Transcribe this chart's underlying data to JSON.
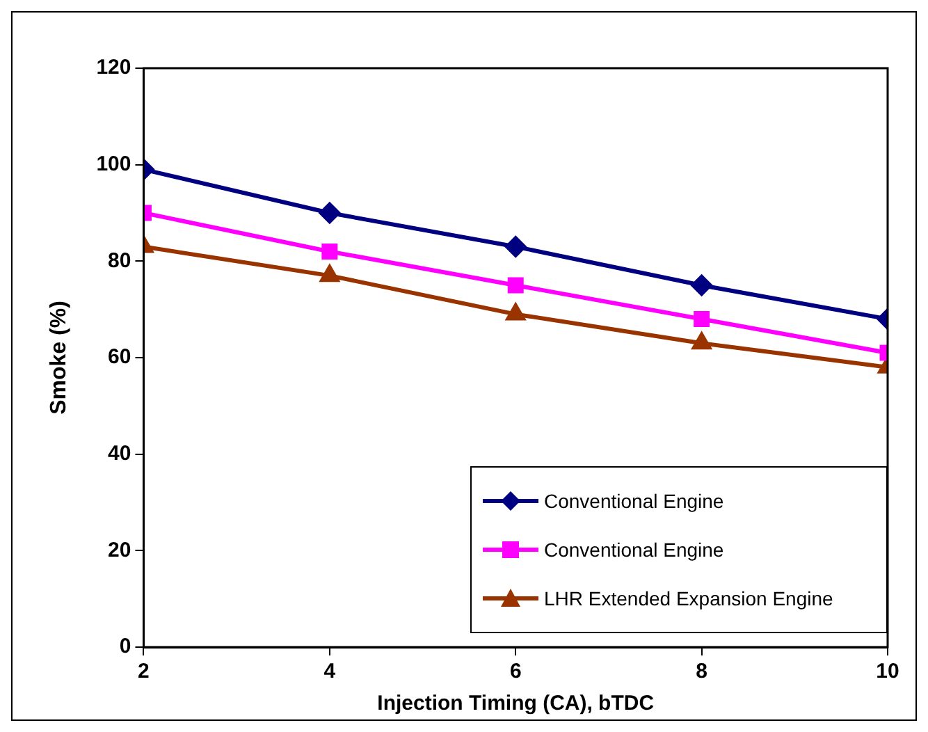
{
  "chart_data": {
    "type": "line",
    "xlabel": "Injection Timing (CA), bTDC",
    "ylabel": "Smoke (%)",
    "x": [
      2,
      4,
      6,
      8,
      10
    ],
    "xlim": [
      2,
      10
    ],
    "xticks": [
      2,
      4,
      6,
      8,
      10
    ],
    "ylim": [
      0,
      120
    ],
    "yticks": [
      0,
      20,
      40,
      60,
      80,
      100,
      120
    ],
    "grid": false,
    "legend": "bottom right",
    "line_style": "solid",
    "series": [
      {
        "name": "Conventional Engine",
        "color": "#000080",
        "marker": "diamond",
        "values": [
          99,
          90,
          83,
          75,
          68
        ]
      },
      {
        "name": "Conventional Engine",
        "color": "#ff00ff",
        "marker": "square",
        "values": [
          90,
          82,
          75,
          68,
          61
        ]
      },
      {
        "name": "LHR Extended Expansion Engine",
        "color": "#993300",
        "marker": "triangle",
        "values": [
          83,
          77,
          69,
          63,
          58
        ]
      }
    ]
  }
}
